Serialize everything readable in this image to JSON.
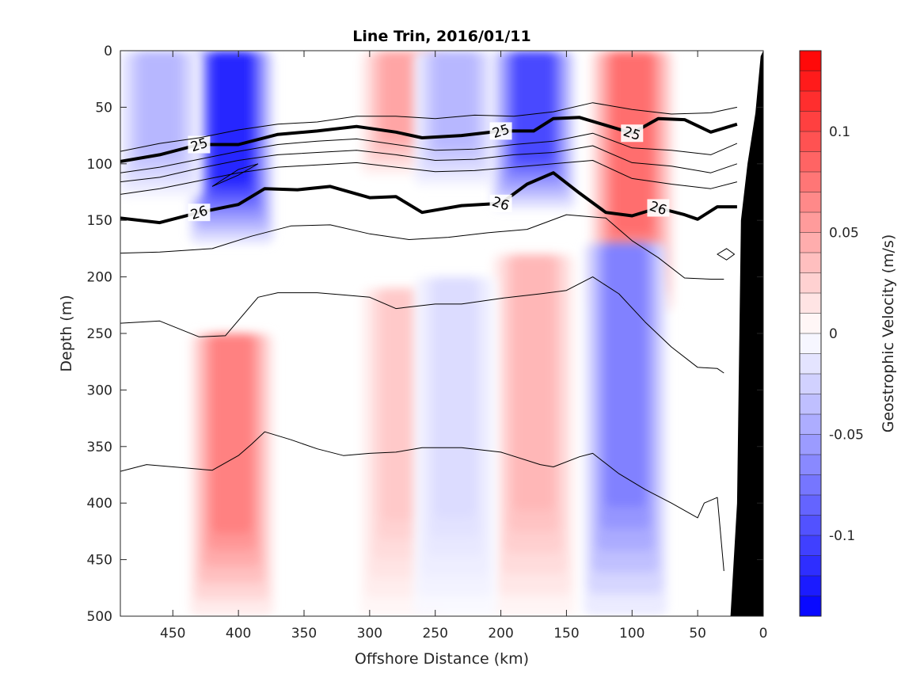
{
  "chart_data": {
    "type": "contour",
    "title": "Line Trin, 2016/01/11",
    "xlabel": "Offshore Distance (km)",
    "ylabel": "Depth (m)",
    "xlim": [
      490,
      0
    ],
    "ylim": [
      0,
      500
    ],
    "x_reversed": true,
    "y_reversed": true,
    "xticks": [
      450,
      400,
      350,
      300,
      250,
      200,
      150,
      100,
      50,
      0
    ],
    "yticks": [
      0,
      50,
      100,
      150,
      200,
      250,
      300,
      350,
      400,
      450,
      500
    ],
    "colorbar": {
      "label": "Geostrophic Velocity (m/s)",
      "range": [
        -0.14,
        0.14
      ],
      "ticks": [
        0.1,
        0.05,
        0,
        -0.05,
        -0.1
      ],
      "tick_labels": [
        "0.1",
        "0.05",
        "0",
        "-0.05",
        "-0.1"
      ],
      "colors": {
        "max": "#ff0000",
        "mid": "#ffffff",
        "min": "#0000ff"
      }
    },
    "velocity_features": [
      {
        "sign": "negative",
        "x_center": 405,
        "depth_top": 0,
        "depth_bottom": 170,
        "peak": -0.12
      },
      {
        "sign": "negative",
        "x_center": 460,
        "depth_top": 0,
        "depth_bottom": 130,
        "peak": -0.04
      },
      {
        "sign": "positive",
        "x_center": 275,
        "depth_top": 0,
        "depth_bottom": 110,
        "peak": 0.05
      },
      {
        "sign": "negative",
        "x_center": 235,
        "depth_top": 0,
        "depth_bottom": 120,
        "peak": -0.04
      },
      {
        "sign": "negative",
        "x_center": 175,
        "depth_top": 0,
        "depth_bottom": 140,
        "peak": -0.1
      },
      {
        "sign": "positive",
        "x_center": 100,
        "depth_top": 0,
        "depth_bottom": 230,
        "peak": 0.08
      },
      {
        "sign": "positive",
        "x_center": 405,
        "depth_top": 250,
        "depth_bottom": 500,
        "peak": 0.07
      },
      {
        "sign": "positive",
        "x_center": 275,
        "depth_top": 210,
        "depth_bottom": 500,
        "peak": 0.03
      },
      {
        "sign": "positive",
        "x_center": 175,
        "depth_top": 180,
        "depth_bottom": 500,
        "peak": 0.04
      },
      {
        "sign": "negative",
        "x_center": 105,
        "depth_top": 170,
        "depth_bottom": 500,
        "peak": -0.07
      },
      {
        "sign": "negative",
        "x_center": 235,
        "depth_top": 200,
        "depth_bottom": 500,
        "peak": -0.02
      }
    ],
    "isopycnals": [
      {
        "label": "25",
        "bold": true,
        "x": [
          490,
          460,
          430,
          400,
          370,
          340,
          310,
          280,
          260,
          230,
          200,
          175,
          160,
          140,
          120,
          100,
          80,
          60,
          40,
          20
        ],
        "depth": [
          98,
          92,
          83,
          83,
          74,
          71,
          67,
          72,
          77,
          75,
          71,
          71,
          60,
          59,
          66,
          73,
          60,
          61,
          72,
          65
        ]
      },
      {
        "label": "26",
        "bold": true,
        "x": [
          490,
          460,
          430,
          400,
          380,
          355,
          330,
          300,
          280,
          260,
          230,
          200,
          180,
          160,
          140,
          120,
          100,
          80,
          60,
          50,
          35,
          20
        ],
        "depth": [
          148,
          152,
          143,
          136,
          122,
          123,
          120,
          130,
          129,
          143,
          137,
          135,
          118,
          108,
          126,
          143,
          146,
          139,
          145,
          149,
          138,
          138
        ]
      },
      {
        "label": "",
        "bold": false,
        "x": [
          490,
          460,
          430,
          400,
          370,
          340,
          310,
          280,
          250,
          220,
          190,
          160,
          130,
          100,
          70,
          40,
          20
        ],
        "depth": [
          89,
          82,
          77,
          70,
          65,
          63,
          58,
          58,
          60,
          57,
          58,
          54,
          46,
          52,
          56,
          55,
          50
        ]
      },
      {
        "label": "",
        "bold": false,
        "x": [
          490,
          460,
          430,
          400,
          370,
          340,
          310,
          280,
          250,
          220,
          190,
          160,
          130,
          100,
          70,
          40,
          20
        ],
        "depth": [
          108,
          103,
          96,
          89,
          83,
          80,
          78,
          83,
          88,
          87,
          83,
          80,
          73,
          86,
          88,
          92,
          82
        ]
      },
      {
        "label": "",
        "bold": false,
        "x": [
          490,
          460,
          430,
          400,
          370,
          340,
          310,
          280,
          250,
          220,
          190,
          160,
          130,
          100,
          70,
          40,
          20
        ],
        "depth": [
          116,
          112,
          104,
          97,
          92,
          90,
          88,
          92,
          97,
          96,
          92,
          90,
          84,
          99,
          102,
          108,
          100
        ]
      },
      {
        "label": "",
        "bold": false,
        "x": [
          490,
          460,
          430,
          400,
          370,
          340,
          310,
          280,
          250,
          220,
          190,
          160,
          130,
          100,
          70,
          40,
          20
        ],
        "depth": [
          127,
          122,
          115,
          108,
          103,
          101,
          99,
          103,
          107,
          106,
          103,
          100,
          97,
          113,
          118,
          122,
          116
        ]
      },
      {
        "label": "",
        "bold": false,
        "x": [
          490,
          460,
          420,
          390,
          360,
          330,
          300,
          270,
          240,
          210,
          180,
          150,
          120,
          100,
          80,
          60,
          40,
          30
        ],
        "depth": [
          179,
          178,
          175,
          164,
          155,
          154,
          162,
          167,
          165,
          161,
          158,
          145,
          148,
          168,
          183,
          201,
          202,
          202
        ]
      },
      {
        "label": "",
        "bold": false,
        "x": [
          490,
          460,
          430,
          410,
          385,
          370,
          340,
          320,
          300,
          280,
          250,
          230,
          200,
          170,
          150,
          130,
          110,
          90,
          70,
          50,
          35,
          30
        ],
        "depth": [
          241,
          239,
          253,
          252,
          218,
          214,
          214,
          216,
          218,
          228,
          224,
          224,
          219,
          215,
          212,
          200,
          215,
          240,
          262,
          280,
          281,
          285
        ]
      },
      {
        "label": "",
        "bold": false,
        "x": [
          490,
          470,
          440,
          420,
          400,
          390,
          380,
          360,
          340,
          320,
          300,
          280,
          260,
          230,
          200,
          170,
          160,
          140,
          130,
          110,
          90,
          70,
          50,
          45,
          35,
          30
        ],
        "depth": [
          372,
          366,
          369,
          371,
          358,
          348,
          337,
          344,
          352,
          358,
          356,
          355,
          351,
          351,
          355,
          366,
          368,
          359,
          356,
          374,
          388,
          400,
          413,
          400,
          395,
          460
        ]
      }
    ],
    "closed_contours": [
      {
        "x": [
          420,
          400,
          385,
          400,
          420
        ],
        "depth": [
          120,
          110,
          100,
          105,
          120
        ]
      },
      {
        "x": [
          35,
          28,
          22,
          28,
          35
        ],
        "depth": [
          180,
          175,
          180,
          185,
          180
        ]
      }
    ],
    "topography": {
      "x": [
        0,
        2,
        6,
        12,
        17,
        20,
        25
      ],
      "depth": [
        0,
        5,
        55,
        100,
        150,
        400,
        500
      ],
      "color": "#000000"
    }
  }
}
